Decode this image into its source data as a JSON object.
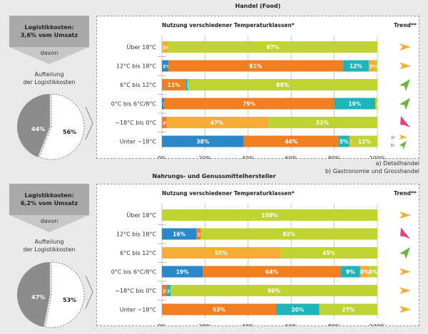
{
  "colors": {
    "blue": "#2a88c8",
    "orange": "#f07f22",
    "yellow_orange": "#f6ad35",
    "teal": "#1fb5b8",
    "lime": "#bfd333",
    "pink": "#e8407a",
    "green_arrow": "#6db33f",
    "grey_box": "#a9a9a9",
    "grey_pie": "#8c8c8c"
  },
  "sections": [
    {
      "title": "Handel (Food)",
      "cost_box": {
        "line1": "Logistikkosten:",
        "line2": "3,6% vom Umsatz"
      },
      "davon": "davon",
      "aufteilung": {
        "line1": "Aufteilung",
        "line2": "der Logistikkosten"
      },
      "pie": {
        "dark_pct": 44,
        "light_pct": 56,
        "dark_label": "44%",
        "light_label": "56%"
      },
      "chart_title": "Nutzung verschiedener Temperaturklassen*",
      "trend_title": "Trend**",
      "footnotes": [
        "a) Detailhandel",
        "b) Gastronomie und Grosshandel"
      ]
    },
    {
      "title": "Nahrungs- und Genussmittelhersteller",
      "cost_box": {
        "line1": "Logistikkosten:",
        "line2": "6,2% vom Umsatz"
      },
      "davon": "davon",
      "aufteilung": {
        "line1": "Aufteilung",
        "line2": "der Logistikkosten"
      },
      "pie": {
        "dark_pct": 47,
        "light_pct": 53,
        "dark_label": "47%",
        "light_label": "53%"
      },
      "chart_title": "Nutzung verschiedener Temperaturklassen*",
      "trend_title": "Trend**",
      "footnotes": []
    }
  ],
  "chart_data": [
    {
      "type": "bar",
      "orientation": "horizontal-stacked",
      "title": "Nutzung verschiedener Temperaturklassen*",
      "xlim": [
        0,
        100
      ],
      "xticks": [
        "0%",
        "20%",
        "40%",
        "60%",
        "80%",
        "100%"
      ],
      "grid": true,
      "categories": [
        "Über 18°C",
        "12°C bis 18°C",
        "6°C bis 12°C",
        "0°C bis 6°C/8°C",
        "−18°C bis 0°C",
        "Unter −18°C"
      ],
      "rows": [
        {
          "segments": [
            {
              "color": "yellow_orange",
              "value": 3,
              "label": "3%"
            },
            {
              "color": "lime",
              "value": 97,
              "label": "97%"
            }
          ],
          "trend": [
            {
              "dir": "right",
              "color": "yellow_orange"
            }
          ]
        },
        {
          "segments": [
            {
              "color": "blue",
              "value": 3,
              "label": "3%"
            },
            {
              "color": "orange",
              "value": 81,
              "label": "81%"
            },
            {
              "color": "teal",
              "value": 12,
              "label": "12%"
            },
            {
              "color": "yellow_orange",
              "value": 3,
              "label": "3%"
            },
            {
              "color": "lime",
              "value": 1,
              "label": "1%"
            }
          ],
          "trend": [
            {
              "dir": "right",
              "color": "yellow_orange"
            }
          ]
        },
        {
          "segments": [
            {
              "color": "orange",
              "value": 11,
              "label": "11%"
            },
            {
              "color": "teal",
              "value": 1,
              "label": "1%"
            },
            {
              "color": "lime",
              "value": 88,
              "label": "88%"
            }
          ],
          "trend": [
            {
              "dir": "up",
              "color": "green_arrow"
            }
          ]
        },
        {
          "segments": [
            {
              "color": "blue",
              "value": 1,
              "label": "1%"
            },
            {
              "color": "orange",
              "value": 79,
              "label": "79%"
            },
            {
              "color": "teal",
              "value": 19,
              "label": "19%"
            },
            {
              "color": "lime",
              "value": 1,
              "label": "1%"
            }
          ],
          "trend": [
            {
              "dir": "up",
              "color": "green_arrow"
            }
          ]
        },
        {
          "segments": [
            {
              "color": "orange",
              "value": 2,
              "label": "2%"
            },
            {
              "color": "yellow_orange",
              "value": 47,
              "label": "47%"
            },
            {
              "color": "lime",
              "value": 51,
              "label": "51%"
            }
          ],
          "trend": [
            {
              "dir": "down",
              "color": "pink"
            }
          ]
        },
        {
          "segments": [
            {
              "color": "blue",
              "value": 38,
              "label": "38%"
            },
            {
              "color": "orange",
              "value": 44,
              "label": "44%"
            },
            {
              "color": "teal",
              "value": 5,
              "label": "5%"
            },
            {
              "color": "yellow_orange",
              "value": 1,
              "label": "1%"
            },
            {
              "color": "lime",
              "value": 12,
              "label": "12%"
            }
          ],
          "trend": [
            {
              "dir": "right",
              "color": "yellow_orange",
              "note": "a)"
            },
            {
              "dir": "up",
              "color": "green_arrow",
              "note": "b)"
            }
          ]
        }
      ]
    },
    {
      "type": "bar",
      "orientation": "horizontal-stacked",
      "title": "Nutzung verschiedener Temperaturklassen*",
      "xlim": [
        0,
        100
      ],
      "xticks": [
        "0%",
        "20%",
        "40%",
        "60%",
        "80%",
        "100%"
      ],
      "grid": true,
      "categories": [
        "Über 18°C",
        "12°C bis 18°C",
        "6°C bis 12°C",
        "0°C bis 6°C/8°C",
        "−18°C bis 0°C",
        "Unter −18°C"
      ],
      "rows": [
        {
          "segments": [
            {
              "color": "lime",
              "value": 100,
              "label": "100%"
            }
          ],
          "trend": [
            {
              "dir": "right",
              "color": "yellow_orange"
            }
          ]
        },
        {
          "segments": [
            {
              "color": "blue",
              "value": 16,
              "label": "16%"
            },
            {
              "color": "orange",
              "value": 2,
              "label": "2%"
            },
            {
              "color": "lime",
              "value": 82,
              "label": "82%"
            }
          ],
          "trend": [
            {
              "dir": "down",
              "color": "pink"
            }
          ]
        },
        {
          "segments": [
            {
              "color": "yellow_orange",
              "value": 55,
              "label": "55%"
            },
            {
              "color": "lime",
              "value": 45,
              "label": "45%"
            }
          ],
          "trend": [
            {
              "dir": "up",
              "color": "green_arrow"
            }
          ]
        },
        {
          "segments": [
            {
              "color": "blue",
              "value": 19,
              "label": "19%"
            },
            {
              "color": "orange",
              "value": 64,
              "label": "64%"
            },
            {
              "color": "teal",
              "value": 9,
              "label": "9%"
            },
            {
              "color": "yellow_orange",
              "value": 4,
              "label": "4%"
            },
            {
              "color": "lime",
              "value": 4,
              "label": "4%"
            }
          ],
          "trend": [
            {
              "dir": "right",
              "color": "yellow_orange"
            }
          ]
        },
        {
          "segments": [
            {
              "color": "orange",
              "value": 2,
              "label": "2%"
            },
            {
              "color": "teal",
              "value": 2,
              "label": "2%"
            },
            {
              "color": "lime",
              "value": 96,
              "label": "96%"
            }
          ],
          "trend": [
            {
              "dir": "right",
              "color": "yellow_orange"
            }
          ]
        },
        {
          "segments": [
            {
              "color": "orange",
              "value": 53,
              "label": "53%"
            },
            {
              "color": "teal",
              "value": 20,
              "label": "20%"
            },
            {
              "color": "lime",
              "value": 27,
              "label": "27%"
            }
          ],
          "trend": [
            {
              "dir": "right",
              "color": "yellow_orange"
            }
          ]
        }
      ]
    }
  ]
}
